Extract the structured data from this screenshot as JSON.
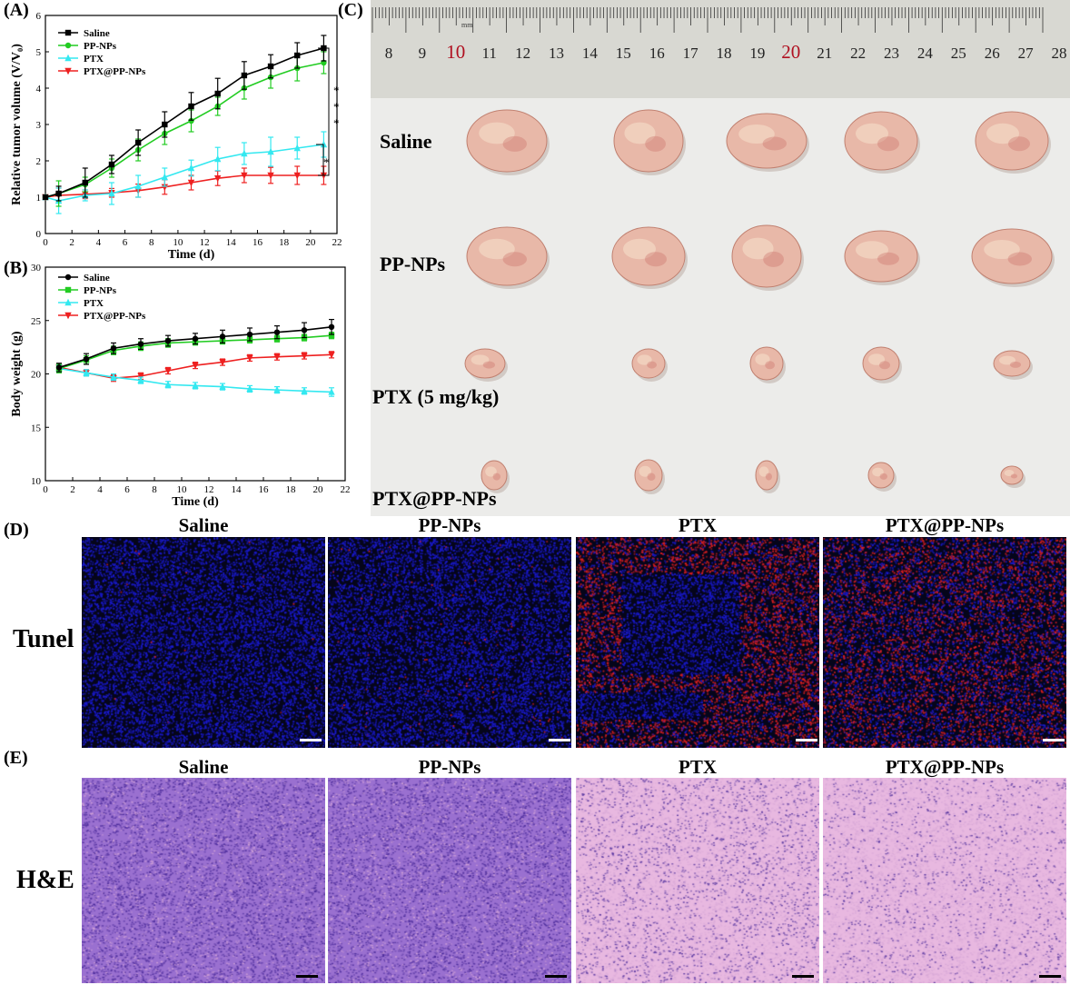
{
  "panel_labels": {
    "a": "(A)",
    "b": "(B)",
    "c": "(C)",
    "d": "(D)",
    "e": "(E)"
  },
  "colors": {
    "saline": "#000000",
    "ppnps": "#22cc22",
    "ptx": "#33e8f0",
    "ptx_ppnps": "#ee2020",
    "ruler_red": "#b01020",
    "tunel_blue": "#1a1ad0",
    "tunel_red": "#e02020",
    "he_purple": "#7a4cc0",
    "he_pink": "#e8b8e0"
  },
  "chart_data": [
    {
      "type": "line",
      "panel": "A",
      "xlabel": "Time (d)",
      "ylabel": "Relative tumor volume (V/V₀)",
      "xlim": [
        0,
        22
      ],
      "ylim": [
        0,
        6
      ],
      "xticks": [
        0,
        2,
        4,
        6,
        8,
        10,
        12,
        14,
        16,
        18,
        20,
        22
      ],
      "yticks": [
        0,
        1,
        2,
        3,
        4,
        5,
        6
      ],
      "legend_position": "top-left",
      "significance_marks": [
        "*",
        "*",
        "*",
        "*"
      ],
      "x": [
        0,
        1,
        3,
        5,
        7,
        9,
        11,
        13,
        15,
        17,
        19,
        21
      ],
      "series": [
        {
          "name": "Saline",
          "values": [
            1.0,
            1.1,
            1.4,
            1.9,
            2.5,
            3.0,
            3.5,
            3.85,
            4.35,
            4.6,
            4.9,
            5.1
          ],
          "errors": [
            0.05,
            0.2,
            0.4,
            0.25,
            0.35,
            0.35,
            0.38,
            0.42,
            0.38,
            0.32,
            0.35,
            0.35
          ],
          "marker": "square"
        },
        {
          "name": "PP-NPs",
          "values": [
            1.0,
            1.1,
            1.35,
            1.8,
            2.3,
            2.75,
            3.1,
            3.5,
            4.0,
            4.3,
            4.55,
            4.7
          ],
          "errors": [
            0.05,
            0.35,
            0.2,
            0.25,
            0.3,
            0.3,
            0.3,
            0.25,
            0.3,
            0.3,
            0.35,
            0.3
          ],
          "marker": "circle"
        },
        {
          "name": "PTX",
          "values": [
            1.0,
            0.9,
            1.05,
            1.1,
            1.3,
            1.55,
            1.8,
            2.05,
            2.2,
            2.25,
            2.35,
            2.45
          ],
          "errors": [
            0.05,
            0.35,
            0.15,
            0.3,
            0.3,
            0.25,
            0.22,
            0.32,
            0.3,
            0.4,
            0.3,
            0.35
          ],
          "marker": "triangle-up"
        },
        {
          "name": "PTX@PP-NPs",
          "values": [
            1.0,
            1.05,
            1.08,
            1.12,
            1.18,
            1.28,
            1.4,
            1.52,
            1.6,
            1.6,
            1.6,
            1.6
          ],
          "errors": [
            0.05,
            0.2,
            0.12,
            0.12,
            0.18,
            0.2,
            0.2,
            0.2,
            0.2,
            0.22,
            0.25,
            0.25
          ],
          "marker": "triangle-down"
        }
      ]
    },
    {
      "type": "line",
      "panel": "B",
      "xlabel": "Time (d)",
      "ylabel": "Body weight (g)",
      "xlim": [
        0,
        22
      ],
      "ylim": [
        10,
        30
      ],
      "xticks": [
        0,
        2,
        4,
        6,
        8,
        10,
        12,
        14,
        16,
        18,
        20,
        22
      ],
      "yticks": [
        10,
        15,
        20,
        25,
        30
      ],
      "legend_position": "top-left",
      "x": [
        1,
        3,
        5,
        7,
        9,
        11,
        13,
        15,
        17,
        19,
        21
      ],
      "series": [
        {
          "name": "Saline",
          "values": [
            20.6,
            21.4,
            22.4,
            22.8,
            23.1,
            23.3,
            23.5,
            23.7,
            23.9,
            24.1,
            24.4
          ],
          "errors": [
            0.4,
            0.5,
            0.5,
            0.5,
            0.5,
            0.5,
            0.6,
            0.6,
            0.6,
            0.7,
            0.7
          ],
          "marker": "circle"
        },
        {
          "name": "PP-NPs",
          "values": [
            20.5,
            21.3,
            22.2,
            22.6,
            22.9,
            23.0,
            23.1,
            23.2,
            23.3,
            23.4,
            23.6
          ],
          "errors": [
            0.4,
            0.4,
            0.4,
            0.4,
            0.4,
            0.3,
            0.3,
            0.3,
            0.3,
            0.3,
            0.3
          ],
          "marker": "square"
        },
        {
          "name": "PTX",
          "values": [
            20.5,
            20.1,
            19.7,
            19.4,
            19.0,
            18.9,
            18.8,
            18.6,
            18.5,
            18.4,
            18.3
          ],
          "errors": [
            0.3,
            0.3,
            0.3,
            0.3,
            0.3,
            0.3,
            0.3,
            0.3,
            0.3,
            0.3,
            0.4
          ],
          "marker": "triangle-up"
        },
        {
          "name": "PTX@PP-NPs",
          "values": [
            20.6,
            20.1,
            19.6,
            19.8,
            20.3,
            20.8,
            21.1,
            21.5,
            21.6,
            21.7,
            21.8
          ],
          "errors": [
            0.3,
            0.3,
            0.3,
            0.3,
            0.3,
            0.3,
            0.3,
            0.3,
            0.3,
            0.3,
            0.3
          ],
          "marker": "triangle-down"
        }
      ]
    }
  ],
  "photo": {
    "ruler_numbers": [
      "8",
      "9",
      "10",
      "11",
      "12",
      "13",
      "14",
      "15",
      "16",
      "17",
      "18",
      "19",
      "20",
      "21",
      "22",
      "23",
      "24",
      "25",
      "26",
      "27",
      "28"
    ],
    "ruler_unit": "mm",
    "rows": [
      {
        "label": "Saline",
        "count": 5
      },
      {
        "label": "PP-NPs",
        "count": 5
      },
      {
        "label": "PTX (5 mg/kg)",
        "count": 5
      },
      {
        "label": "PTX@PP-NPs",
        "count": 5
      }
    ]
  },
  "tunel": {
    "row_label": "Tunel",
    "columns": [
      "Saline",
      "PP-NPs",
      "PTX",
      "PTX@PP-NPs"
    ]
  },
  "he": {
    "row_label": "H&E",
    "columns": [
      "Saline",
      "PP-NPs",
      "PTX",
      "PTX@PP-NPs"
    ]
  }
}
